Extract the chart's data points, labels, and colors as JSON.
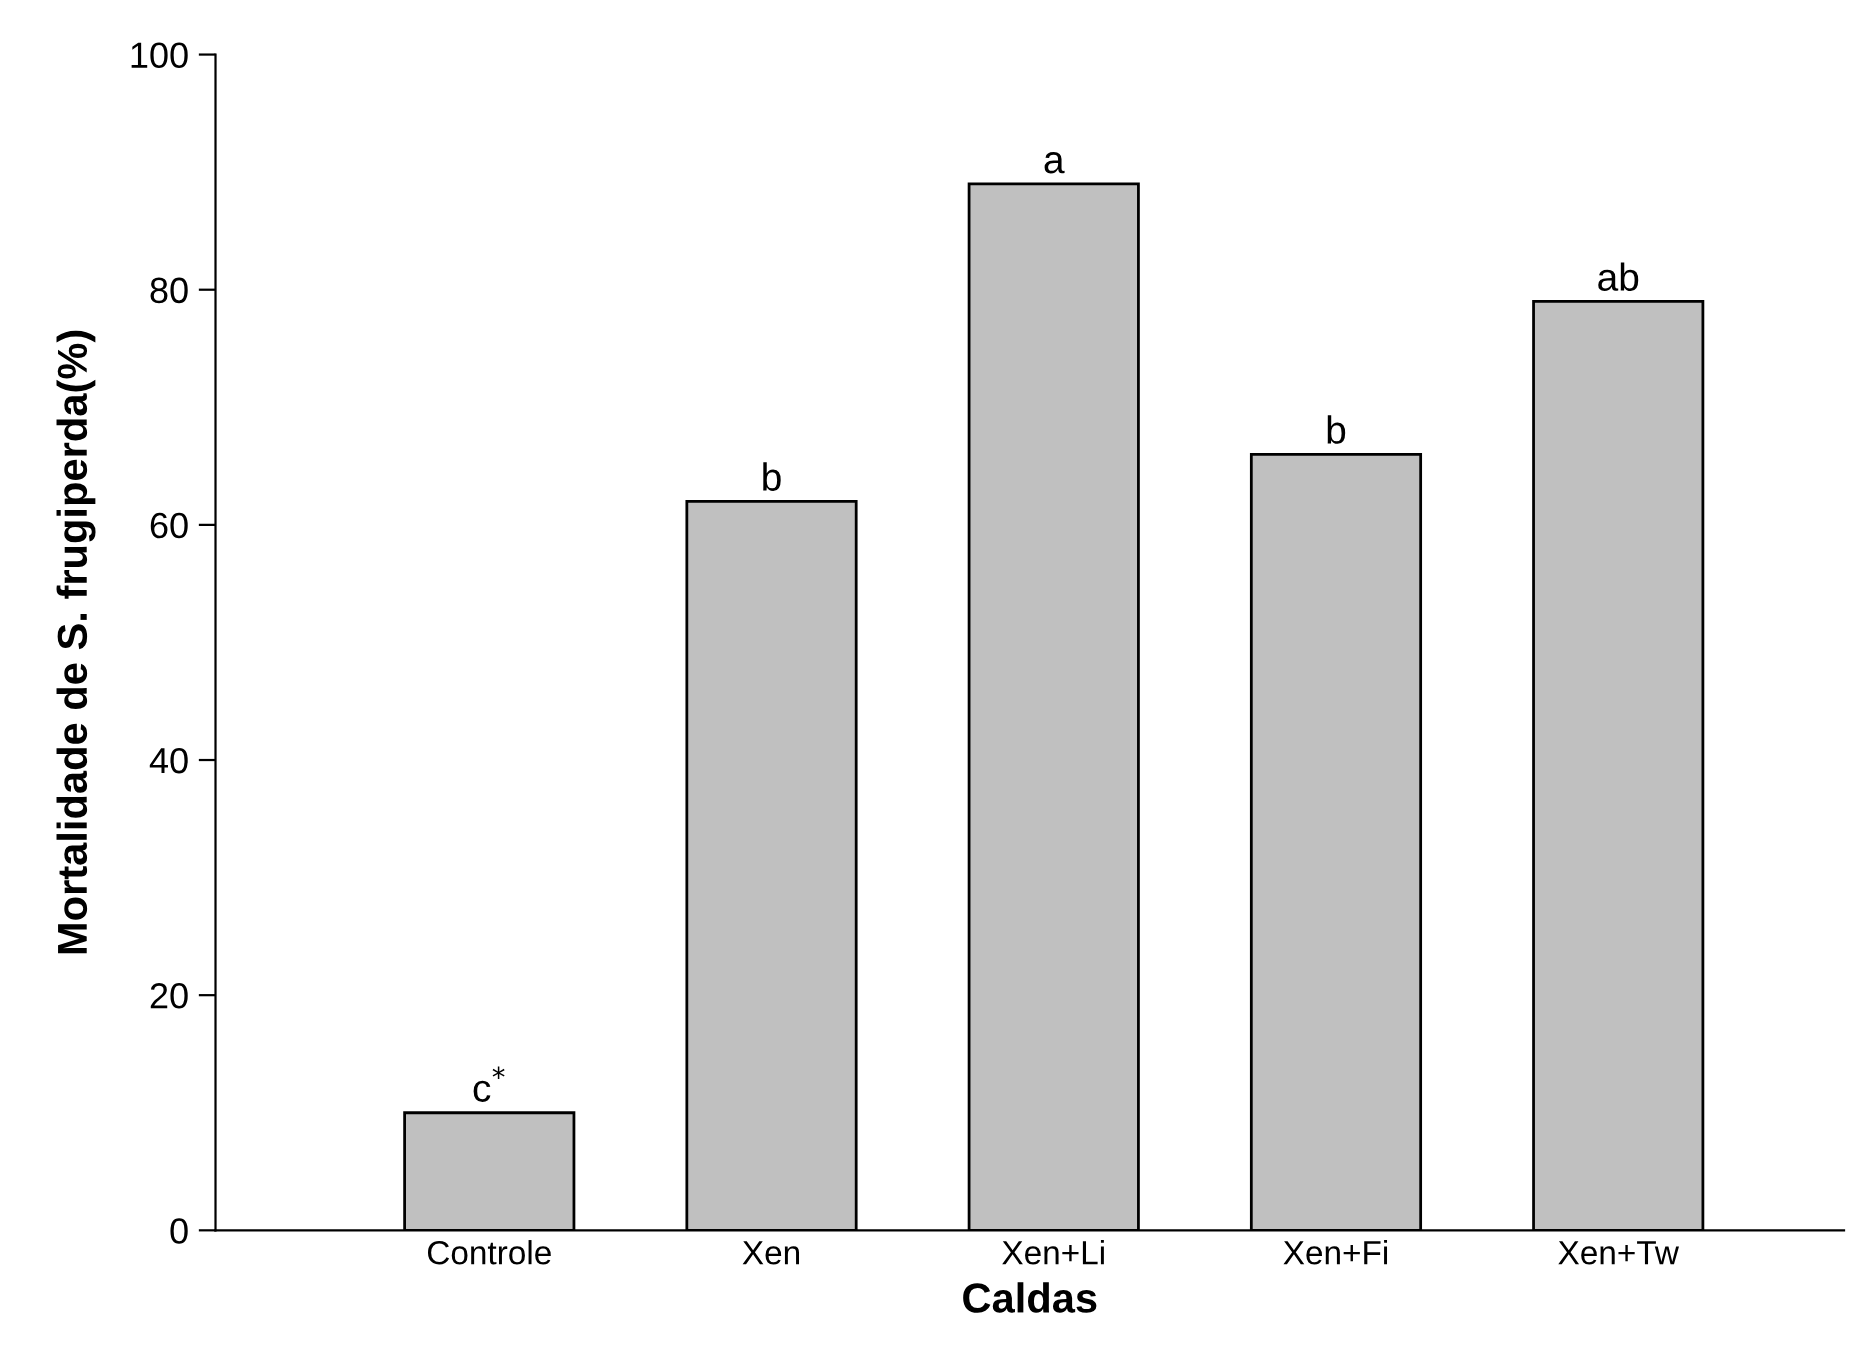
{
  "chart_data": {
    "type": "bar",
    "xlabel": "Caldas",
    "ylabel": "Mortalidade de S. frugiperda(%)",
    "categories": [
      "Controle",
      "Xen",
      "Xen+Li",
      "Xen+Fi",
      "Xen+Tw"
    ],
    "values": [
      10,
      62,
      89,
      66,
      79
    ],
    "color": "#c0c0c0",
    "value_labels": [
      "c$^{*}$",
      "b",
      "a",
      "b",
      "ab"
    ],
    "ylim": [
      0,
      100
    ],
    "yticks": [
      0,
      20,
      40,
      60,
      80,
      100
    ],
    "grid": false,
    "legend": false
  }
}
